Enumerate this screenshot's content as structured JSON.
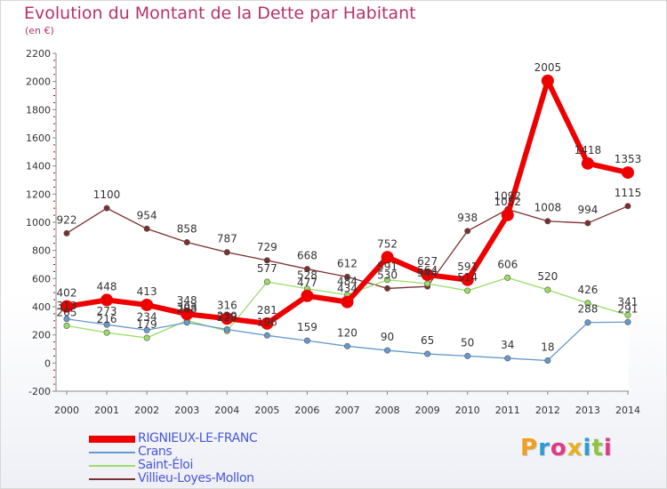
{
  "title": "Evolution du Montant de la Dette par Habitant",
  "subtitle": "(en €)",
  "logo": {
    "text": "Proxiti",
    "letters": [
      {
        "ch": "P",
        "color": "#f0a020"
      },
      {
        "ch": "r",
        "color": "#2b9bd6"
      },
      {
        "ch": "o",
        "color": "#e03a8a"
      },
      {
        "ch": "x",
        "color": "#e8b020"
      },
      {
        "ch": "i",
        "color": "#2b9bd6"
      },
      {
        "ch": "t",
        "color": "#8cc63f"
      },
      {
        "ch": "i",
        "color": "#e03a8a"
      }
    ]
  },
  "chart_data": {
    "type": "line",
    "title": "Evolution du Montant de la Dette par Habitant",
    "subtitle": "(en €)",
    "x": [
      2000,
      2001,
      2002,
      2003,
      2004,
      2005,
      2006,
      2007,
      2008,
      2009,
      2010,
      2011,
      2012,
      2013,
      2014
    ],
    "ylim": [
      -200,
      2200
    ],
    "yticks": [
      -200,
      0,
      200,
      400,
      600,
      800,
      1000,
      1200,
      1400,
      1600,
      1800,
      2000,
      2200
    ],
    "grid": false,
    "legend_position": "bottom-left",
    "series": [
      {
        "name": "RIGNIEUX-LE-FRANC",
        "color": "#ee0000",
        "values": [
          402,
          448,
          413,
          348,
          316,
          281,
          477,
          434,
          752,
          627,
          591,
          1052,
          2005,
          1418,
          1353
        ]
      },
      {
        "name": "Crans",
        "color": "#6699cc",
        "values": [
          313,
          273,
          234,
          288,
          239,
          196,
          159,
          120,
          90,
          65,
          50,
          34,
          18,
          288,
          291
        ]
      },
      {
        "name": "Saint-Éloi",
        "color": "#99dd66",
        "values": [
          265,
          216,
          179,
          303,
          228,
          577,
          528,
          484,
          591,
          564,
          514,
          606,
          520,
          426,
          341
        ]
      },
      {
        "name": "Villieu-Loyes-Mollon",
        "color": "#7a3030",
        "values": [
          922,
          1100,
          954,
          858,
          787,
          729,
          668,
          612,
          530,
          544,
          938,
          1092,
          1008,
          994,
          1115
        ]
      }
    ]
  }
}
